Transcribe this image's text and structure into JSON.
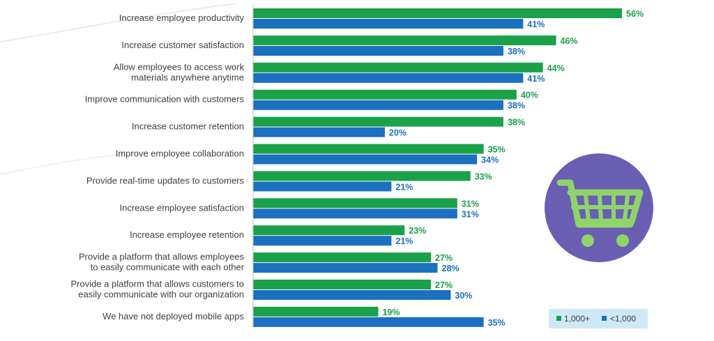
{
  "chart_data": {
    "type": "bar",
    "orientation": "horizontal",
    "categories": [
      [
        "Increase employee productivity"
      ],
      [
        "Increase customer satisfaction"
      ],
      [
        "Allow employees to access work",
        "materials anywhere anytime"
      ],
      [
        "Improve communication with customers"
      ],
      [
        "Increase customer retention"
      ],
      [
        "Improve employee collaboration"
      ],
      [
        "Provide real-time updates to customers"
      ],
      [
        "Increase employee satisfaction"
      ],
      [
        "Increase employee retention"
      ],
      [
        "Provide a platform that allows employees",
        "to easily communicate with each other"
      ],
      [
        "Provide a platform that allows customers to",
        "easily communicate with our organization"
      ],
      [
        "We have not deployed mobile apps"
      ]
    ],
    "series": [
      {
        "name": "1,000+",
        "color": "#1aa14a",
        "values": [
          56,
          46,
          44,
          40,
          38,
          35,
          33,
          31,
          23,
          27,
          27,
          19
        ]
      },
      {
        "name": "<1,000",
        "color": "#1b70bf",
        "values": [
          41,
          38,
          41,
          38,
          20,
          34,
          21,
          31,
          21,
          28,
          30,
          35
        ]
      }
    ],
    "value_suffix": "%",
    "xlim": [
      0,
      60
    ],
    "grid": false,
    "legend_position": "bottom-right"
  },
  "decoration": {
    "icon": "shopping-cart-icon",
    "icon_bg_color": "#6a5eb3",
    "icon_fg_color": "#8fd36b",
    "legend_bg_color": "#cde9f7"
  }
}
